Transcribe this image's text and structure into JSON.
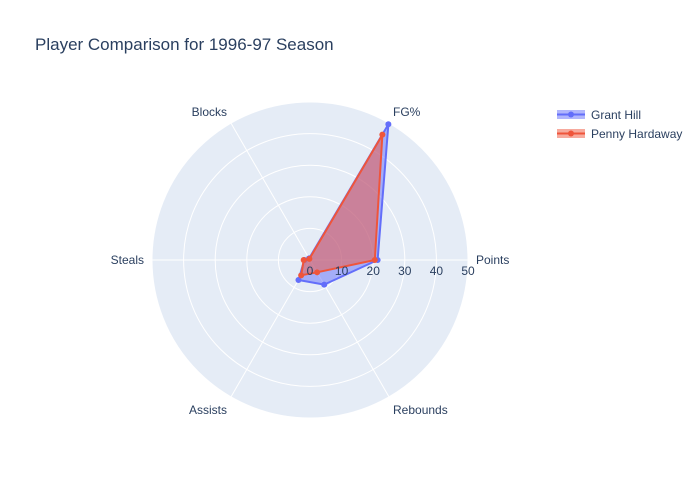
{
  "chart_data": {
    "type": "radar",
    "title": "Player Comparison for 1996-97 Season",
    "categories": [
      "Points",
      "Rebounds",
      "Assists",
      "Steals",
      "Blocks",
      "FG%"
    ],
    "radial_ticks": [
      "0",
      "10",
      "20",
      "30",
      "40",
      "50"
    ],
    "radial_range": [
      0,
      50
    ],
    "grid": true,
    "legend_position": "top-right",
    "series": [
      {
        "name": "Grant Hill",
        "values": [
          21.4,
          9.0,
          7.3,
          1.8,
          0.6,
          49.6
        ],
        "color": "#636efa"
      },
      {
        "name": "Penny Hardaway",
        "values": [
          20.5,
          4.5,
          5.6,
          2.0,
          0.4,
          45.8
        ],
        "color": "#ef553b"
      }
    ]
  },
  "colors": {
    "polar_background": "#e5ecf6",
    "grid_line": "#ffffff",
    "text": "#2a3f5f"
  }
}
